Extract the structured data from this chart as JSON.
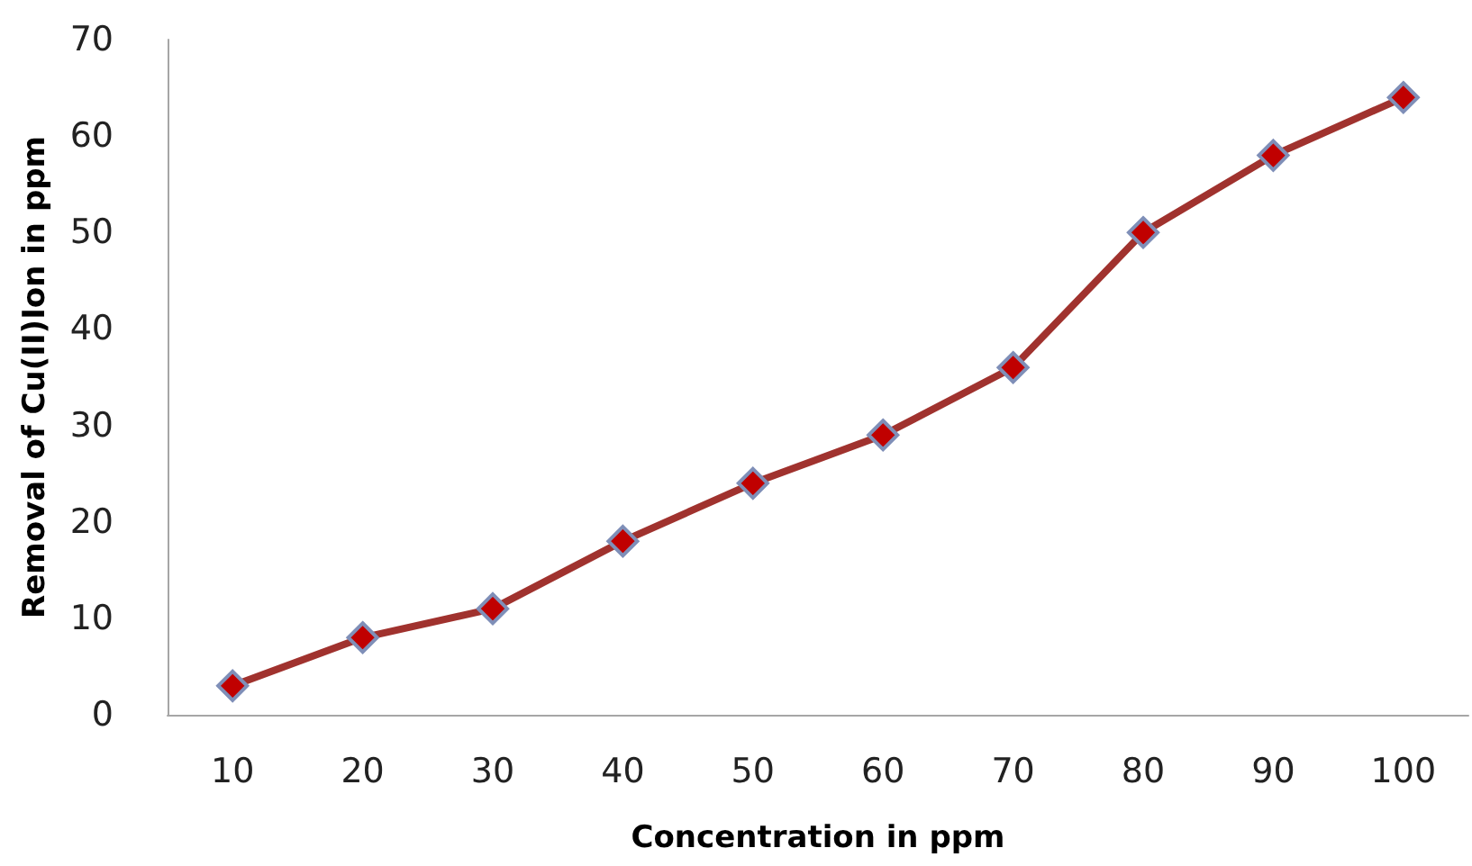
{
  "chart_data": {
    "type": "line",
    "xlabel": "Concentration in ppm",
    "ylabel": "Removal of Cu(II)Ion in ppm",
    "categories": [
      "10",
      "20",
      "30",
      "40",
      "50",
      "60",
      "70",
      "80",
      "90",
      "100"
    ],
    "series": [
      {
        "color": "#a0322e",
        "values": [
          3,
          8,
          11,
          18,
          24,
          29,
          36,
          50,
          58,
          64
        ]
      }
    ],
    "ylim": [
      0,
      70
    ],
    "yticks": [
      0,
      10,
      20,
      30,
      40,
      50,
      60,
      70
    ],
    "grid": false,
    "marker": "diamond",
    "line_style": "solid"
  }
}
